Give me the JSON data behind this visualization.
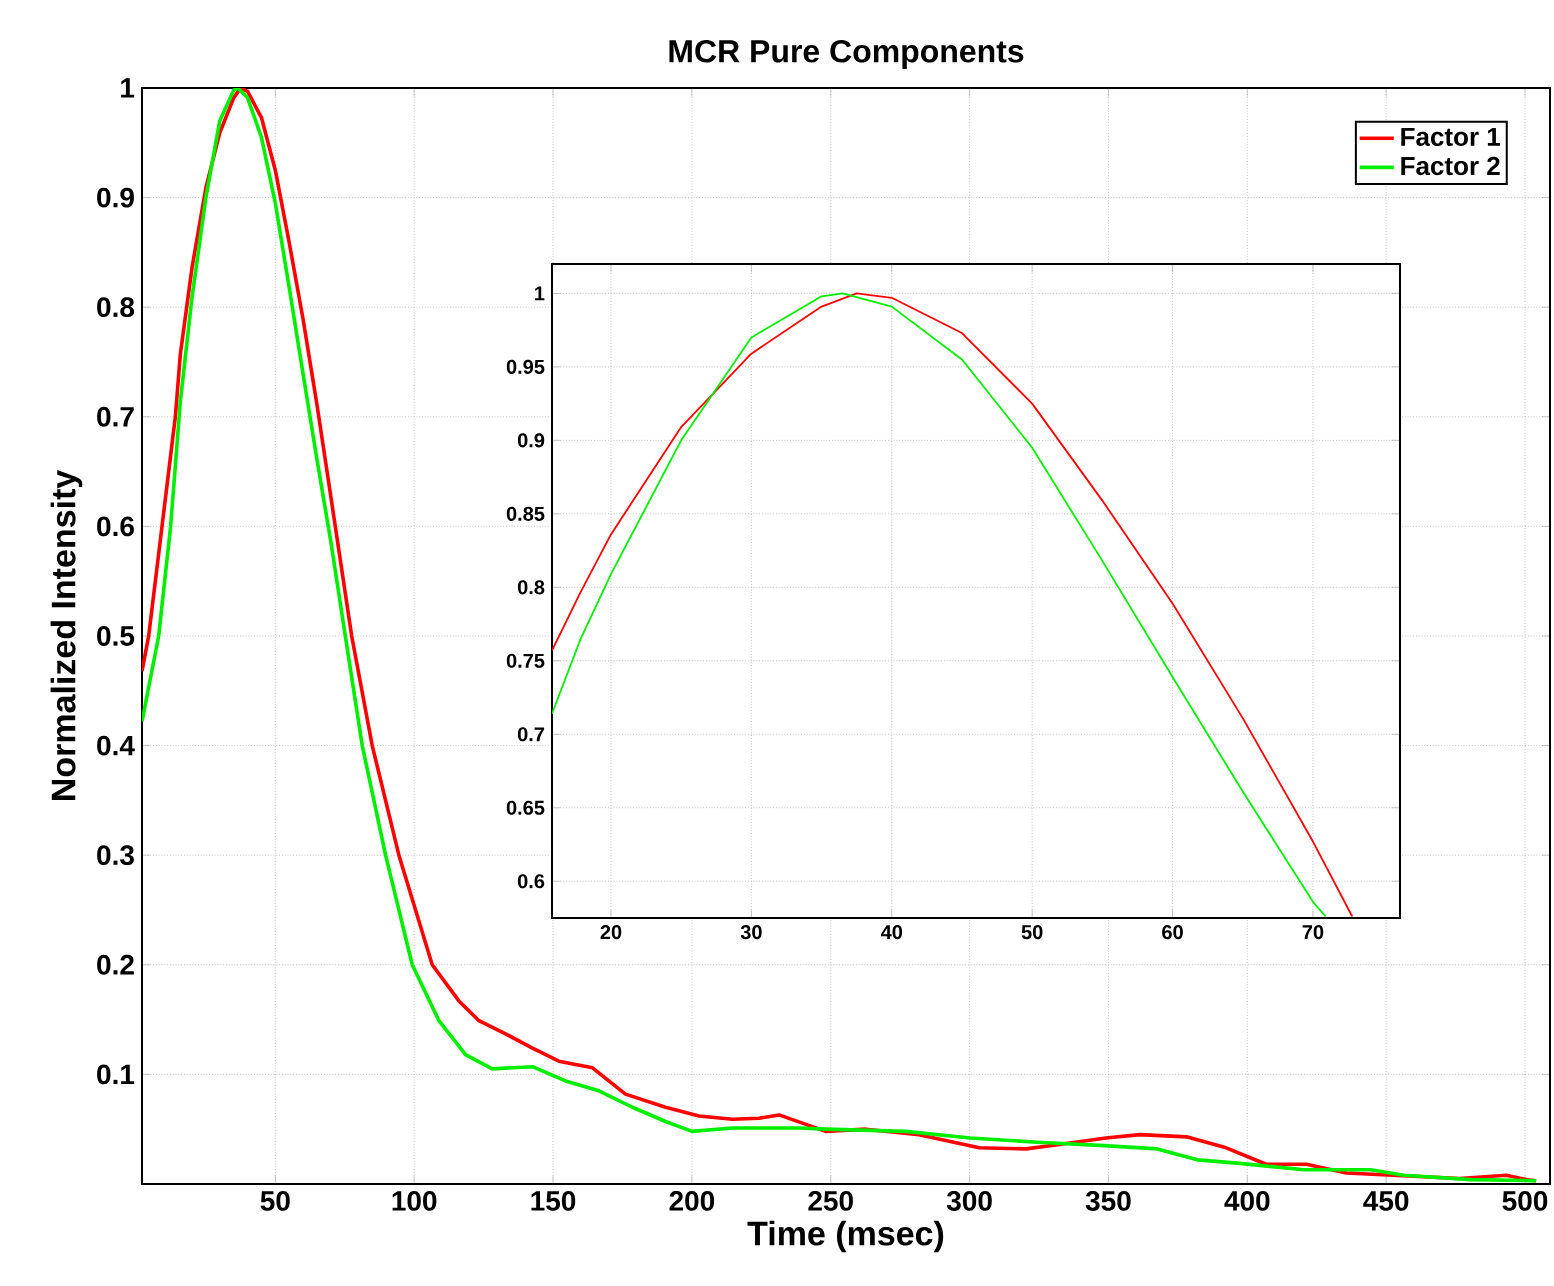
{
  "chart_data": [
    {
      "type": "line",
      "title": "MCR Pure Components",
      "xlabel": "Time (msec)",
      "ylabel": "Normalized Intensity",
      "xlim": [
        2,
        509
      ],
      "ylim": [
        0,
        1
      ],
      "xticks": [
        50,
        100,
        150,
        200,
        250,
        300,
        350,
        400,
        450,
        500
      ],
      "yticks": [
        0.1,
        0.2,
        0.3,
        0.4,
        0.5,
        0.6,
        0.7,
        0.8,
        0.9,
        1
      ],
      "grid": true,
      "legend": "top right",
      "series": [
        {
          "name": "Factor 1",
          "color": "#ff0000",
          "x": [
            2,
            4.4,
            9.2,
            14,
            15.8,
            20,
            25,
            30,
            35,
            37.5,
            40,
            45,
            50,
            55,
            60,
            65,
            70,
            77.5,
            84.9,
            94.5,
            106.5,
            116.1,
            123.3,
            132.9,
            142.6,
            152.1,
            164.2,
            176.1,
            190.5,
            202.6,
            214.6,
            224.2,
            231.4,
            248.2,
            262.6,
            281.8,
            303.5,
            320.3,
            332.3,
            349.1,
            361.3,
            378.1,
            392.4,
            406.8,
            421.3,
            435.7,
            452.5,
            476.4,
            493.3,
            500.5,
            504
          ],
          "values": [
            0.468,
            0.5,
            0.6,
            0.7,
            0.757,
            0.836,
            0.909,
            0.959,
            0.991,
            1.0,
            0.997,
            0.973,
            0.925,
            0.859,
            0.789,
            0.711,
            0.627,
            0.5,
            0.4,
            0.3,
            0.2,
            0.167,
            0.149,
            0.137,
            0.124,
            0.112,
            0.106,
            0.082,
            0.07,
            0.062,
            0.059,
            0.06,
            0.063,
            0.048,
            0.05,
            0.045,
            0.033,
            0.032,
            0.036,
            0.042,
            0.045,
            0.043,
            0.033,
            0.018,
            0.018,
            0.01,
            0.008,
            0.005,
            0.008,
            0.004,
            0.003
          ]
        },
        {
          "name": "Factor 2",
          "color": "#00ee00",
          "x": [
            2,
            8,
            12.3,
            15.8,
            20,
            25,
            30,
            35,
            36.5,
            40,
            45,
            50,
            55,
            60,
            65,
            70,
            75.2,
            81.3,
            89.7,
            99.3,
            108.9,
            118.5,
            128.1,
            142.6,
            154.5,
            166.5,
            178.6,
            190.5,
            200.1,
            214.6,
            238.6,
            248.2,
            276.9,
            300.3,
            324.4,
            348.4,
            367.6,
            382,
            396.4,
            420.4,
            444.4,
            456.4,
            480.4,
            504
          ],
          "values": [
            0.422,
            0.5,
            0.6,
            0.714,
            0.809,
            0.9,
            0.97,
            0.998,
            1.0,
            0.991,
            0.955,
            0.895,
            0.818,
            0.739,
            0.661,
            0.586,
            0.5,
            0.4,
            0.3,
            0.2,
            0.149,
            0.118,
            0.105,
            0.107,
            0.094,
            0.085,
            0.07,
            0.057,
            0.048,
            0.051,
            0.051,
            0.05,
            0.048,
            0.042,
            0.038,
            0.035,
            0.032,
            0.022,
            0.019,
            0.013,
            0.013,
            0.008,
            0.004,
            0.003
          ]
        }
      ]
    },
    {
      "type": "line",
      "xlim": [
        15.8,
        76.2
      ],
      "ylim": [
        0.575,
        1.02
      ],
      "xticks": [
        20,
        30,
        40,
        50,
        60,
        70
      ],
      "yticks": [
        0.6,
        0.65,
        0.7,
        0.75,
        0.8,
        0.85,
        0.9,
        0.95,
        1
      ],
      "grid": true,
      "series": [
        {
          "color": "#ff0000",
          "x": [
            15.8,
            17.8,
            20,
            25,
            30,
            35,
            37.5,
            40,
            45,
            50,
            55,
            60,
            65,
            70,
            72.8
          ],
          "values": [
            0.757,
            0.796,
            0.836,
            0.909,
            0.959,
            0.991,
            1.0,
            0.997,
            0.973,
            0.925,
            0.859,
            0.789,
            0.711,
            0.627,
            0.576
          ]
        },
        {
          "color": "#00ee00",
          "x": [
            15.8,
            17.8,
            20,
            25,
            30,
            35,
            36.5,
            40,
            45,
            50,
            55,
            60,
            65,
            70,
            70.9
          ],
          "values": [
            0.714,
            0.764,
            0.809,
            0.9,
            0.97,
            0.998,
            1.0,
            0.991,
            0.955,
            0.895,
            0.818,
            0.739,
            0.661,
            0.586,
            0.576
          ]
        }
      ]
    }
  ]
}
